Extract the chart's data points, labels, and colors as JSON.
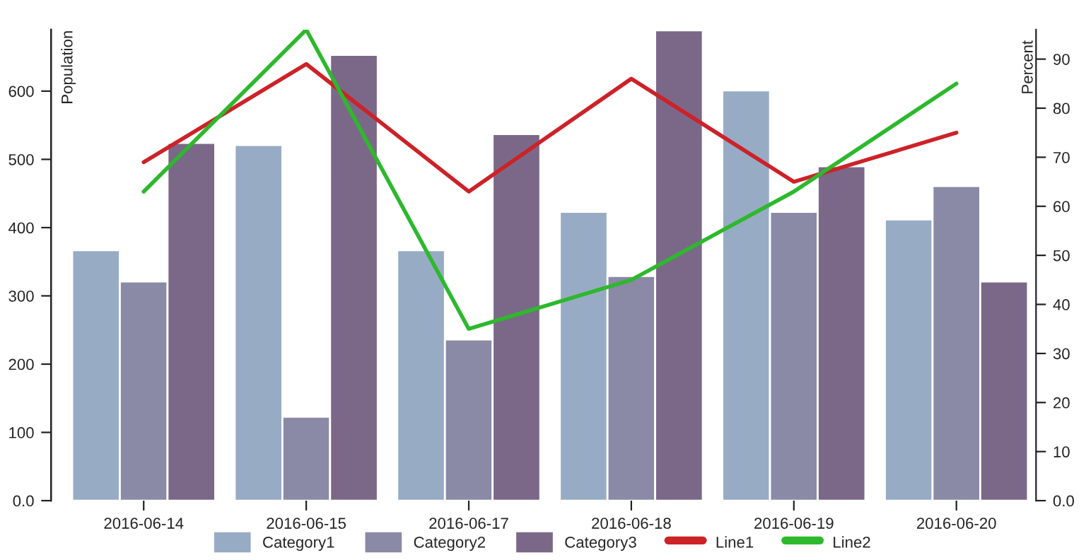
{
  "chart_data": {
    "type": "bar",
    "categories": [
      "2016-06-14",
      "2016-06-15",
      "2016-06-17",
      "2016-06-18",
      "2016-06-19",
      "2016-06-20"
    ],
    "ylabel": "Population",
    "y2label": "Percent",
    "series": [
      {
        "name": "Category1",
        "color": "#98abc5",
        "values": [
          367,
          521,
          367,
          423,
          601,
          412
        ]
      },
      {
        "name": "Category2",
        "color": "#8a89a6",
        "values": [
          321,
          123,
          236,
          329,
          423,
          461
        ]
      },
      {
        "name": "Category3",
        "color": "#7b6888",
        "values": [
          524,
          653,
          537,
          689,
          490,
          321
        ]
      },
      {
        "name": "Line1",
        "type": "line",
        "axis": "y2",
        "color": "#cc2228",
        "values": [
          69,
          89,
          63,
          86,
          65,
          75
        ]
      },
      {
        "name": "Line2",
        "type": "line",
        "axis": "y2",
        "color": "#2db82d",
        "values": [
          63,
          96,
          35,
          45,
          63,
          85
        ]
      }
    ],
    "ylim": [
      0,
      690
    ],
    "yticks": [
      {
        "value": 0,
        "label": "0.0"
      },
      100,
      200,
      300,
      400,
      500,
      600
    ],
    "y2lim": [
      0,
      96
    ],
    "y2ticks": [
      {
        "value": 0,
        "label": "0.0"
      },
      10,
      20,
      30,
      40,
      50,
      60,
      70,
      80,
      90
    ],
    "grid": false,
    "legend": "bottom",
    "marker": "none",
    "line_style": "solid"
  }
}
